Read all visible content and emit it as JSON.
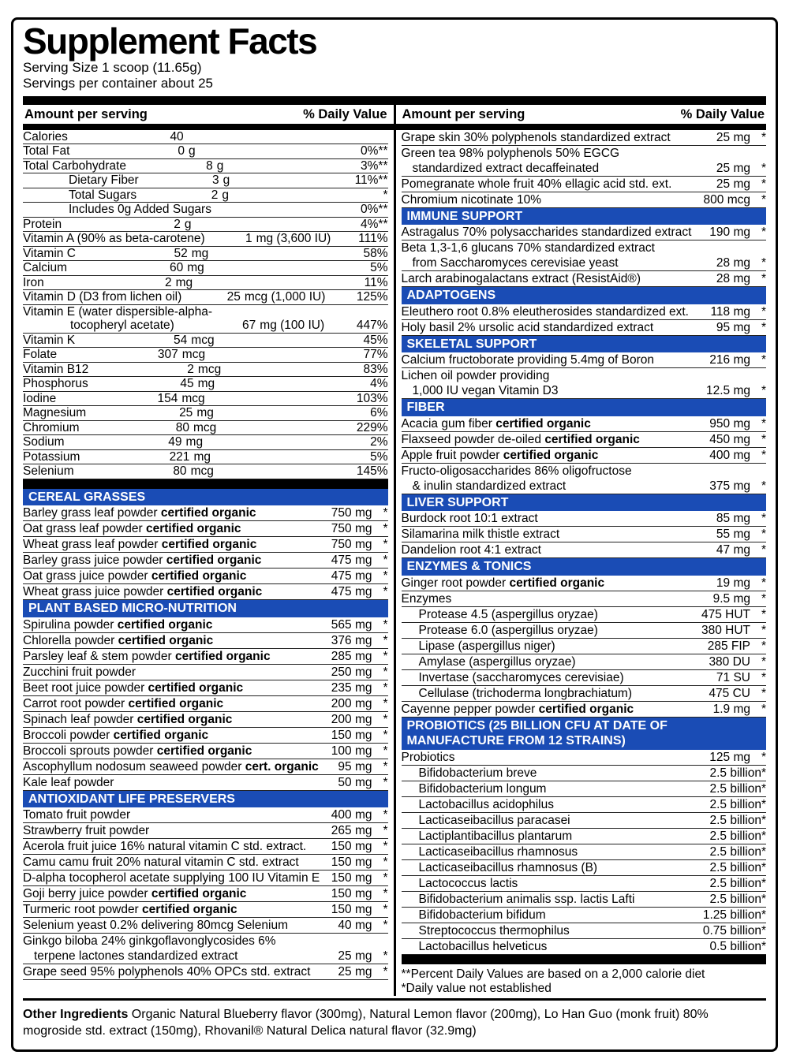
{
  "title": "Supplement Facts",
  "serving_size": "Serving Size 1 scoop (11.65g)",
  "servings_per_container": "Servings per container about 25",
  "col_headers": {
    "amount": "Amount per serving",
    "dv": "% Daily Value"
  },
  "colors": {
    "section_bg": "#1a4cb5",
    "bar": "#000000"
  },
  "left": {
    "nutrients": [
      {
        "name": "Calories",
        "num": "40",
        "unit": "",
        "dv": ""
      },
      {
        "name": "Total Fat",
        "num": "0",
        "unit": "g",
        "dv": "0%**"
      },
      {
        "name": "Total Carbohydrate",
        "num": "8",
        "unit": "g",
        "dv": "3%**"
      },
      {
        "name": "Dietary Fiber",
        "num": "3",
        "unit": "g",
        "dv": "11%**",
        "indent": 1
      },
      {
        "name": "Total Sugars",
        "num": "2",
        "unit": "g",
        "dv": "*",
        "indent": 1
      },
      {
        "name": "Includes 0g Added Sugars",
        "num": "",
        "unit": "",
        "dv": "0%**",
        "indent": 1
      },
      {
        "name": "Protein",
        "num": "2",
        "unit": "g",
        "dv": "4%**"
      },
      {
        "name": "Vitamin A (90% as beta-carotene)",
        "num": "1",
        "unit": "mg (3,600 IU)",
        "dv": "111%"
      },
      {
        "name": "Vitamin C",
        "num": "52",
        "unit": "mg",
        "dv": "58%"
      },
      {
        "name": "Calcium",
        "num": "60",
        "unit": "mg",
        "dv": "5%"
      },
      {
        "name": "Iron",
        "num": "2",
        "unit": "mg",
        "dv": "11%"
      },
      {
        "name": "Vitamin D (D3 from lichen oil)",
        "num": "25",
        "unit": "mcg (1,000 IU)",
        "dv": "125%"
      },
      {
        "name": "Vitamin E (water dispersible-alpha-",
        "name2": "tocopheryl acetate)",
        "num": "67",
        "unit": "mg (100 IU)",
        "dv": "447%"
      },
      {
        "name": "Vitamin K",
        "num": "54",
        "unit": "mcg",
        "dv": "45%"
      },
      {
        "name": "Folate",
        "num": "307",
        "unit": "mcg",
        "dv": "77%"
      },
      {
        "name": "Vitamin B12",
        "num": "2",
        "unit": "mcg",
        "dv": "83%"
      },
      {
        "name": "Phosphorus",
        "num": "45",
        "unit": "mg",
        "dv": "4%"
      },
      {
        "name": "Iodine",
        "num": "154",
        "unit": "mcg",
        "dv": "103%"
      },
      {
        "name": "Magnesium",
        "num": "25",
        "unit": "mg",
        "dv": "6%"
      },
      {
        "name": "Chromium",
        "num": "80",
        "unit": "mcg",
        "dv": "229%"
      },
      {
        "name": "Sodium",
        "num": "49",
        "unit": "mg",
        "dv": "2%"
      },
      {
        "name": "Potassium",
        "num": "221",
        "unit": "mg",
        "dv": "5%"
      },
      {
        "name": "Selenium",
        "num": "80",
        "unit": "mcg",
        "dv": "145%"
      }
    ],
    "sections": [
      {
        "title": "CEREAL GRASSES",
        "rows": [
          {
            "name": "Barley grass leaf powder",
            "bold": "certified organic",
            "amt": "750 mg",
            "dv": "*"
          },
          {
            "name": "Oat grass leaf powder",
            "bold": "certified organic",
            "amt": "750 mg",
            "dv": "*"
          },
          {
            "name": "Wheat grass leaf powder",
            "bold": "certified organic",
            "amt": "750 mg",
            "dv": "*"
          },
          {
            "name": "Barley grass juice powder",
            "bold": "certified organic",
            "amt": "475 mg",
            "dv": "*"
          },
          {
            "name": "Oat grass juice powder",
            "bold": "certified organic",
            "amt": "475 mg",
            "dv": "*"
          },
          {
            "name": "Wheat grass juice powder",
            "bold": "certified organic",
            "amt": "475 mg",
            "dv": "*"
          }
        ]
      },
      {
        "title": "PLANT BASED MICRO-NUTRITION",
        "rows": [
          {
            "name": "Spirulina powder",
            "bold": "certified organic",
            "amt": "565 mg",
            "dv": "*"
          },
          {
            "name": "Chlorella powder",
            "bold": "certified organic",
            "amt": "376 mg",
            "dv": "*"
          },
          {
            "name": "Parsley leaf & stem powder",
            "bold": "certified organic",
            "amt": "285 mg",
            "dv": "*"
          },
          {
            "name": "Zucchini fruit powder",
            "amt": "250 mg",
            "dv": "*"
          },
          {
            "name": "Beet root juice powder",
            "bold": "certified organic",
            "amt": "235 mg",
            "dv": "*"
          },
          {
            "name": "Carrot root powder",
            "bold": "certified organic",
            "amt": "200 mg",
            "dv": "*"
          },
          {
            "name": "Spinach leaf powder",
            "bold": "certified organic",
            "amt": "200 mg",
            "dv": "*"
          },
          {
            "name": "Broccoli powder",
            "bold": "certified organic",
            "amt": "150 mg",
            "dv": "*"
          },
          {
            "name": "Broccoli sprouts powder",
            "bold": "certified organic",
            "amt": "100 mg",
            "dv": "*"
          },
          {
            "name": "Ascophyllum nodosum seaweed powder",
            "bold": "cert. organic",
            "amt": "95 mg",
            "dv": "*"
          },
          {
            "name": "Kale leaf powder",
            "amt": "50 mg",
            "dv": "*"
          }
        ]
      },
      {
        "title": "ANTIOXIDANT LIFE PRESERVERS",
        "rows": [
          {
            "name": "Tomato fruit powder",
            "amt": "400 mg",
            "dv": "*"
          },
          {
            "name": "Strawberry fruit powder",
            "amt": "265 mg",
            "dv": "*"
          },
          {
            "name": "Acerola fruit juice 16% natural vitamin C std. extract.",
            "amt": "150 mg",
            "dv": "*"
          },
          {
            "name": "Camu camu fruit 20% natural vitamin C std. extract",
            "amt": "150 mg",
            "dv": "*"
          },
          {
            "name": "D-alpha tocopherol acetate supplying 100 IU Vitamin E",
            "amt": "150 mg",
            "dv": "*"
          },
          {
            "name": "Goji berry juice powder",
            "bold": "certified organic",
            "amt": "150 mg",
            "dv": "*"
          },
          {
            "name": "Turmeric root powder",
            "bold": "certified organic",
            "amt": "150 mg",
            "dv": "*"
          },
          {
            "name": "Selenium yeast 0.2% delivering 80mcg Selenium",
            "amt": "40 mg",
            "dv": "*"
          },
          {
            "name": "Ginkgo biloba 24% ginkgoflavonglycosides 6%",
            "name2": "terpene lactones standardized extract",
            "amt": "25 mg",
            "dv": "*"
          },
          {
            "name": "Grape seed 95% polyphenols 40% OPCs std. extract",
            "amt": "25 mg",
            "dv": "*"
          }
        ]
      }
    ]
  },
  "right": {
    "sections": [
      {
        "title": null,
        "rows": [
          {
            "name": "Grape skin 30% polyphenols standardized extract",
            "amt": "25 mg",
            "dv": "*"
          },
          {
            "name": "Green tea 98% polyphenols 50% EGCG",
            "name2": "standardized extract decaffeinated",
            "amt": "25 mg",
            "dv": "*"
          },
          {
            "name": "Pomegranate whole fruit 40% ellagic acid std. ext.",
            "amt": "25 mg",
            "dv": "*"
          },
          {
            "name": "Chromium nicotinate 10%",
            "amt": "800 mcg",
            "dv": "*"
          }
        ]
      },
      {
        "title": "IMMUNE SUPPORT",
        "rows": [
          {
            "name": "Astragalus 70% polysaccharides standardized extract",
            "amt": "190 mg",
            "dv": "*"
          },
          {
            "name": "Beta 1,3-1,6 glucans 70% standardized extract",
            "name2": "from Saccharomyces cerevisiae yeast",
            "amt": "28 mg",
            "dv": "*"
          },
          {
            "name": "Larch arabinogalactans extract (ResistAid®)",
            "amt": "28 mg",
            "dv": "*"
          }
        ]
      },
      {
        "title": "ADAPTOGENS",
        "rows": [
          {
            "name": "Eleuthero root 0.8% eleutherosides standardized ext.",
            "amt": "118 mg",
            "dv": "*"
          },
          {
            "name": "Holy basil 2% ursolic acid standardized extract",
            "amt": "95 mg",
            "dv": "*"
          }
        ]
      },
      {
        "title": "SKELETAL SUPPORT",
        "rows": [
          {
            "name": "Calcium fructoborate providing 5.4mg of Boron",
            "amt": "216 mg",
            "dv": "*"
          },
          {
            "name": "Lichen oil powder providing",
            "name2": "1,000 IU vegan Vitamin D3",
            "amt": "12.5 mg",
            "dv": "*"
          }
        ]
      },
      {
        "title": "FIBER",
        "rows": [
          {
            "name": "Acacia gum fiber",
            "bold": "certified organic",
            "amt": "950 mg",
            "dv": "*"
          },
          {
            "name": "Flaxseed powder de-oiled",
            "bold": "certified organic",
            "amt": "450 mg",
            "dv": "*"
          },
          {
            "name": "Apple fruit powder",
            "bold": "certified organic",
            "amt": "400 mg",
            "dv": "*"
          },
          {
            "name": "Fructo-oligosaccharides 86% oligofructose",
            "name2": "& inulin standardized extract",
            "amt": "375 mg",
            "dv": "*"
          }
        ]
      },
      {
        "title": "LIVER SUPPORT",
        "rows": [
          {
            "name": "Burdock root 10:1 extract",
            "amt": "85 mg",
            "dv": "*"
          },
          {
            "name": "Silamarina milk thistle extract",
            "amt": "55 mg",
            "dv": "*"
          },
          {
            "name": "Dandelion root 4:1 extract",
            "amt": "47 mg",
            "dv": "*"
          }
        ]
      },
      {
        "title": "ENZYMES & TONICS",
        "rows": [
          {
            "name": "Ginger root powder",
            "bold": "certified organic",
            "amt": "19 mg",
            "dv": "*"
          },
          {
            "name": "Enzymes",
            "amt": "9.5 mg",
            "dv": "*"
          },
          {
            "name": "Protease 4.5 (aspergillus oryzae)",
            "amt": "475 HUT",
            "dv": "*",
            "indent": 1
          },
          {
            "name": "Protease 6.0 (aspergillus oryzae)",
            "amt": "380 HUT",
            "dv": "*",
            "indent": 1
          },
          {
            "name": "Lipase (aspergillus niger)",
            "amt": "285 FIP",
            "dv": "*",
            "indent": 1
          },
          {
            "name": "Amylase (aspergillus oryzae)",
            "amt": "380 DU",
            "dv": "*",
            "indent": 1
          },
          {
            "name": "Invertase (saccharomyces cerevisiae)",
            "amt": "71 SU",
            "dv": "*",
            "indent": 1
          },
          {
            "name": "Cellulase (trichoderma longbrachiatum)",
            "amt": "475 CU",
            "dv": "*",
            "indent": 1
          },
          {
            "name": "Cayenne pepper powder",
            "bold": "certified organic",
            "amt": "1.9 mg",
            "dv": "*"
          }
        ]
      },
      {
        "title": "PROBIOTICS (25 BILLION CFU AT DATE OF MANUFACTURE FROM 12 STRAINS)",
        "rows": [
          {
            "name": "Probiotics",
            "amt": "125 mg",
            "dv": "*"
          },
          {
            "name": "Bifidobacterium breve",
            "amt": "2.5 billion*",
            "indent": 1
          },
          {
            "name": "Bifidobacterium longum",
            "amt": "2.5 billion*",
            "indent": 1
          },
          {
            "name": "Lactobacillus acidophilus",
            "amt": "2.5 billion*",
            "indent": 1
          },
          {
            "name": "Lacticaseibacillus paracasei",
            "amt": "2.5 billion*",
            "indent": 1
          },
          {
            "name": "Lactiplantibacillus plantarum",
            "amt": "2.5 billion*",
            "indent": 1
          },
          {
            "name": "Lacticaseibacillus rhamnosus",
            "amt": "2.5 billion*",
            "indent": 1
          },
          {
            "name": "Lacticaseibacillus rhamnosus (B)",
            "amt": "2.5 billion*",
            "indent": 1
          },
          {
            "name": "Lactococcus lactis",
            "amt": "2.5 billion*",
            "indent": 1
          },
          {
            "name": "Bifidobacterium animalis ssp. lactis Lafti",
            "amt": "2.5 billion*",
            "indent": 1
          },
          {
            "name": "Bifidobacterium bifidum",
            "amt": "1.25 billion*",
            "indent": 1
          },
          {
            "name": "Streptococcus thermophilus",
            "amt": "0.75 billion*",
            "indent": 1
          },
          {
            "name": "Lactobacillus helveticus",
            "amt": "0.5 billion*",
            "indent": 1
          }
        ]
      }
    ]
  },
  "footnotes": [
    "**Percent Daily Values are based on a 2,000 calorie diet",
    "*Daily value not established"
  ],
  "other_ingredients": {
    "label": "Other Ingredients",
    "text": " Organic Natural Blueberry flavor (300mg), Natural Lemon flavor (200mg), Lo Han Guo (monk fruit) 80% mogroside std. extract (150mg), Rhovanil® Natural Delica natural flavor (32.9mg)"
  }
}
